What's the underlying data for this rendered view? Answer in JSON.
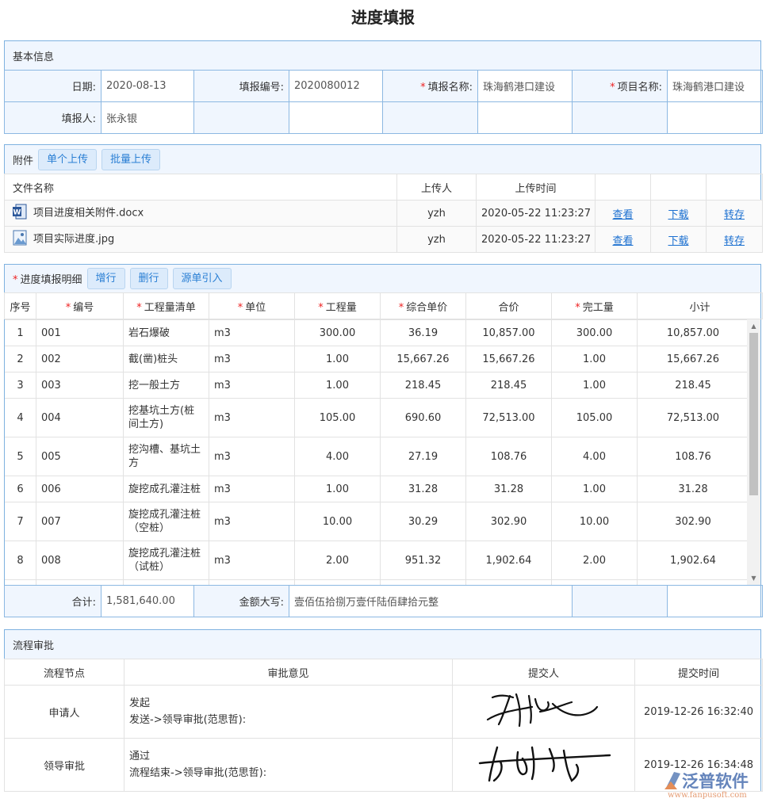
{
  "title": "进度填报",
  "basic": {
    "header": "基本信息",
    "date_label": "日期:",
    "date": "2020-08-13",
    "no_label": "填报编号:",
    "no": "2020080012",
    "name_label": "填报名称:",
    "name": "珠海鹤港口建设",
    "project_label": "项目名称:",
    "project": "珠海鹤港口建设",
    "reporter_label": "填报人:",
    "reporter": "张永银"
  },
  "attach": {
    "header": "附件",
    "btn_single": "单个上传",
    "btn_batch": "批量上传",
    "cols": [
      "文件名称",
      "上传人",
      "上传时间"
    ],
    "files": [
      {
        "icon": "word-doc-icon",
        "name": "项目进度相关附件.docx",
        "uploader": "yzh",
        "time": "2020-05-22 11:23:27",
        "view": "查看",
        "download": "下载",
        "save": "转存"
      },
      {
        "icon": "image-file-icon",
        "name": "项目实际进度.jpg",
        "uploader": "yzh",
        "time": "2020-05-22 11:23:27",
        "view": "查看",
        "download": "下载",
        "save": "转存"
      }
    ]
  },
  "detail": {
    "header": "进度填报明细",
    "btn_add": "增行",
    "btn_del": "删行",
    "btn_import": "源单引入",
    "cols": [
      "序号",
      "编号",
      "工程量清单",
      "单位",
      "工程量",
      "综合单价",
      "合价",
      "完工量",
      "小计"
    ],
    "rows": [
      [
        "1",
        "001",
        "岩石爆破",
        "m3",
        "300.00",
        "36.19",
        "10,857.00",
        "300.00",
        "10,857.00"
      ],
      [
        "2",
        "002",
        "截(凿)桩头",
        "m3",
        "1.00",
        "15,667.26",
        "15,667.26",
        "1.00",
        "15,667.26"
      ],
      [
        "3",
        "003",
        "挖一般土方",
        "m3",
        "1.00",
        "218.45",
        "218.45",
        "1.00",
        "218.45"
      ],
      [
        "4",
        "004",
        "挖基坑土方(桩间土方)",
        "m3",
        "105.00",
        "690.60",
        "72,513.00",
        "105.00",
        "72,513.00"
      ],
      [
        "5",
        "005",
        "挖沟槽、基坑土方",
        "m3",
        "4.00",
        "27.19",
        "108.76",
        "4.00",
        "108.76"
      ],
      [
        "6",
        "006",
        "旋挖成孔灌注桩",
        "m3",
        "1.00",
        "31.28",
        "31.28",
        "1.00",
        "31.28"
      ],
      [
        "7",
        "007",
        "旋挖成孔灌注桩（空桩）",
        "m3",
        "10.00",
        "30.29",
        "302.90",
        "10.00",
        "302.90"
      ],
      [
        "8",
        "008",
        "旋挖成孔灌注桩（试桩）",
        "m3",
        "2.00",
        "951.32",
        "1,902.64",
        "2.00",
        "1,902.64"
      ]
    ],
    "total_label": "合计:",
    "total": "1,581,640.00",
    "upper_label": "金额大写:",
    "upper": "壹佰伍拾捌万壹仟陆佰肆拾元整"
  },
  "flow": {
    "header": "流程审批",
    "cols": [
      "流程节点",
      "审批意见",
      "提交人",
      "提交时间"
    ],
    "rows": [
      {
        "node": "申请人",
        "op1": "发起",
        "op2": "发送->领导审批(范思哲):",
        "time": "2019-12-26 16:32:40"
      },
      {
        "node": "领导审批",
        "op1": "通过",
        "op2": "流程结束->领导审批(范思哲):",
        "time": "2019-12-26 16:34:48"
      }
    ]
  },
  "watermark": {
    "brand": "泛普软件",
    "url": "www.fanpusoft.com"
  }
}
